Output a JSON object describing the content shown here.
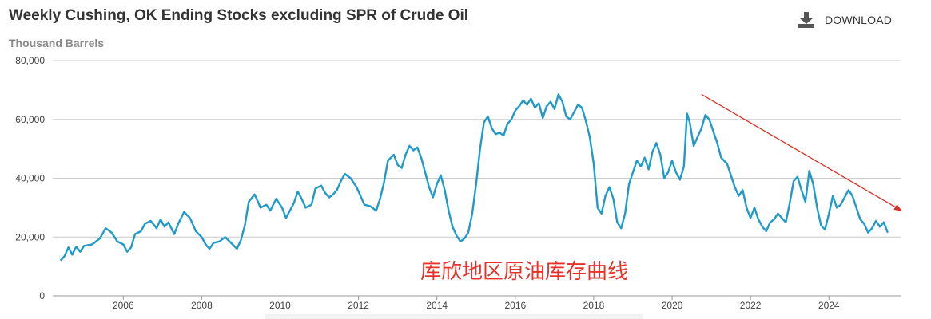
{
  "header": {
    "title": "Weekly Cushing, OK Ending Stocks excluding SPR of Crude Oil",
    "subtitle": "Thousand Barrels",
    "download_label": "DOWNLOAD",
    "download_icon": "download-icon"
  },
  "colors": {
    "line": "#1f9ac9",
    "grid": "#cccccc",
    "annotation": "#e8312a",
    "arrow": "#d93025"
  },
  "annotation_text": "库欣地区原油库存曲线",
  "chart_data": {
    "type": "line",
    "title": "Weekly Cushing, OK Ending Stocks excluding SPR of Crude Oil",
    "ylabel": "Thousand Barrels",
    "xlabel": "",
    "xlim": [
      2004.2,
      2025.85
    ],
    "ylim": [
      0,
      80000
    ],
    "yticks": [
      0,
      20000,
      40000,
      60000,
      80000
    ],
    "ytick_labels": [
      "0",
      "20,000",
      "40,000",
      "60,000",
      "80,000"
    ],
    "xticks": [
      2006,
      2008,
      2010,
      2012,
      2014,
      2016,
      2018,
      2020,
      2022,
      2024
    ],
    "xtick_labels": [
      "2006",
      "2008",
      "2010",
      "2012",
      "2014",
      "2016",
      "2018",
      "2020",
      "2022",
      "2024"
    ],
    "grid": true,
    "legend": "none",
    "series": [
      {
        "points": [
          [
            2004.4,
            12000
          ],
          [
            2004.5,
            13500
          ],
          [
            2004.6,
            16500
          ],
          [
            2004.7,
            14000
          ],
          [
            2004.8,
            16800
          ],
          [
            2004.9,
            15000
          ],
          [
            2005.0,
            17000
          ],
          [
            2005.2,
            17500
          ],
          [
            2005.4,
            19500
          ],
          [
            2005.55,
            23000
          ],
          [
            2005.7,
            21500
          ],
          [
            2005.85,
            18500
          ],
          [
            2006.0,
            17500
          ],
          [
            2006.1,
            15000
          ],
          [
            2006.2,
            16500
          ],
          [
            2006.3,
            21000
          ],
          [
            2006.45,
            22000
          ],
          [
            2006.55,
            24500
          ],
          [
            2006.7,
            25500
          ],
          [
            2006.85,
            23000
          ],
          [
            2006.95,
            26000
          ],
          [
            2007.05,
            23500
          ],
          [
            2007.15,
            25000
          ],
          [
            2007.3,
            21000
          ],
          [
            2007.4,
            24500
          ],
          [
            2007.55,
            28500
          ],
          [
            2007.7,
            26500
          ],
          [
            2007.85,
            22000
          ],
          [
            2008.0,
            20000
          ],
          [
            2008.1,
            17500
          ],
          [
            2008.2,
            16000
          ],
          [
            2008.3,
            18000
          ],
          [
            2008.45,
            18500
          ],
          [
            2008.6,
            20000
          ],
          [
            2008.75,
            18000
          ],
          [
            2008.9,
            16000
          ],
          [
            2009.0,
            19000
          ],
          [
            2009.1,
            24000
          ],
          [
            2009.2,
            32000
          ],
          [
            2009.35,
            34500
          ],
          [
            2009.5,
            30000
          ],
          [
            2009.65,
            31000
          ],
          [
            2009.75,
            29000
          ],
          [
            2009.9,
            33000
          ],
          [
            2010.05,
            30000
          ],
          [
            2010.15,
            26500
          ],
          [
            2010.25,
            29000
          ],
          [
            2010.35,
            31500
          ],
          [
            2010.45,
            35500
          ],
          [
            2010.55,
            33000
          ],
          [
            2010.65,
            30000
          ],
          [
            2010.8,
            31000
          ],
          [
            2010.9,
            36500
          ],
          [
            2011.05,
            37500
          ],
          [
            2011.15,
            35000
          ],
          [
            2011.25,
            33500
          ],
          [
            2011.35,
            34500
          ],
          [
            2011.45,
            36000
          ],
          [
            2011.55,
            39000
          ],
          [
            2011.65,
            41500
          ],
          [
            2011.8,
            40000
          ],
          [
            2011.95,
            37000
          ],
          [
            2012.05,
            34000
          ],
          [
            2012.15,
            31000
          ],
          [
            2012.3,
            30500
          ],
          [
            2012.45,
            29000
          ],
          [
            2012.55,
            33000
          ],
          [
            2012.65,
            38500
          ],
          [
            2012.75,
            46000
          ],
          [
            2012.9,
            48000
          ],
          [
            2013.0,
            44500
          ],
          [
            2013.1,
            43500
          ],
          [
            2013.2,
            48000
          ],
          [
            2013.3,
            51000
          ],
          [
            2013.4,
            49500
          ],
          [
            2013.5,
            50500
          ],
          [
            2013.6,
            47000
          ],
          [
            2013.7,
            42000
          ],
          [
            2013.8,
            37000
          ],
          [
            2013.9,
            33500
          ],
          [
            2014.0,
            38000
          ],
          [
            2014.1,
            41000
          ],
          [
            2014.2,
            36000
          ],
          [
            2014.3,
            29000
          ],
          [
            2014.4,
            23500
          ],
          [
            2014.5,
            20500
          ],
          [
            2014.6,
            18500
          ],
          [
            2014.7,
            19500
          ],
          [
            2014.8,
            21500
          ],
          [
            2014.9,
            28000
          ],
          [
            2015.0,
            38000
          ],
          [
            2015.1,
            50000
          ],
          [
            2015.2,
            59000
          ],
          [
            2015.3,
            61000
          ],
          [
            2015.4,
            57000
          ],
          [
            2015.5,
            55000
          ],
          [
            2015.6,
            55500
          ],
          [
            2015.7,
            54500
          ],
          [
            2015.8,
            58500
          ],
          [
            2015.9,
            60000
          ],
          [
            2016.0,
            63000
          ],
          [
            2016.1,
            64500
          ],
          [
            2016.2,
            66500
          ],
          [
            2016.3,
            65000
          ],
          [
            2016.4,
            67000
          ],
          [
            2016.5,
            64000
          ],
          [
            2016.6,
            65500
          ],
          [
            2016.7,
            60500
          ],
          [
            2016.8,
            64500
          ],
          [
            2016.9,
            66000
          ],
          [
            2017.0,
            63500
          ],
          [
            2017.1,
            68500
          ],
          [
            2017.2,
            66000
          ],
          [
            2017.3,
            61000
          ],
          [
            2017.4,
            60000
          ],
          [
            2017.5,
            62500
          ],
          [
            2017.6,
            65000
          ],
          [
            2017.7,
            64000
          ],
          [
            2017.8,
            59500
          ],
          [
            2017.9,
            54000
          ],
          [
            2018.0,
            45000
          ],
          [
            2018.1,
            30000
          ],
          [
            2018.2,
            28000
          ],
          [
            2018.3,
            34000
          ],
          [
            2018.4,
            37000
          ],
          [
            2018.5,
            33000
          ],
          [
            2018.6,
            25000
          ],
          [
            2018.7,
            23000
          ],
          [
            2018.8,
            28000
          ],
          [
            2018.9,
            38000
          ],
          [
            2019.0,
            42000
          ],
          [
            2019.1,
            46000
          ],
          [
            2019.2,
            44000
          ],
          [
            2019.3,
            47000
          ],
          [
            2019.4,
            43000
          ],
          [
            2019.5,
            49000
          ],
          [
            2019.6,
            52000
          ],
          [
            2019.7,
            48000
          ],
          [
            2019.8,
            40000
          ],
          [
            2019.9,
            42000
          ],
          [
            2020.0,
            46000
          ],
          [
            2020.1,
            42000
          ],
          [
            2020.2,
            39500
          ],
          [
            2020.3,
            44000
          ],
          [
            2020.38,
            62000
          ],
          [
            2020.45,
            59000
          ],
          [
            2020.55,
            51000
          ],
          [
            2020.65,
            54000
          ],
          [
            2020.75,
            57000
          ],
          [
            2020.85,
            61500
          ],
          [
            2020.95,
            60000
          ],
          [
            2021.05,
            56000
          ],
          [
            2021.15,
            52000
          ],
          [
            2021.25,
            47000
          ],
          [
            2021.4,
            45000
          ],
          [
            2021.5,
            41000
          ],
          [
            2021.6,
            37000
          ],
          [
            2021.7,
            34000
          ],
          [
            2021.8,
            36000
          ],
          [
            2021.9,
            30000
          ],
          [
            2022.0,
            26500
          ],
          [
            2022.1,
            30000
          ],
          [
            2022.2,
            26000
          ],
          [
            2022.3,
            23500
          ],
          [
            2022.4,
            22000
          ],
          [
            2022.5,
            25000
          ],
          [
            2022.6,
            26000
          ],
          [
            2022.7,
            28000
          ],
          [
            2022.8,
            26500
          ],
          [
            2022.9,
            25000
          ],
          [
            2023.0,
            31500
          ],
          [
            2023.1,
            39000
          ],
          [
            2023.2,
            40500
          ],
          [
            2023.3,
            36000
          ],
          [
            2023.4,
            32000
          ],
          [
            2023.5,
            42500
          ],
          [
            2023.6,
            38000
          ],
          [
            2023.7,
            30000
          ],
          [
            2023.8,
            24000
          ],
          [
            2023.9,
            22500
          ],
          [
            2024.0,
            28000
          ],
          [
            2024.1,
            34000
          ],
          [
            2024.2,
            30000
          ],
          [
            2024.3,
            31000
          ],
          [
            2024.4,
            33500
          ],
          [
            2024.5,
            36000
          ],
          [
            2024.6,
            34000
          ],
          [
            2024.7,
            30000
          ],
          [
            2024.8,
            26000
          ],
          [
            2024.9,
            24500
          ],
          [
            2025.0,
            21500
          ],
          [
            2025.1,
            23000
          ],
          [
            2025.2,
            25500
          ],
          [
            2025.3,
            23500
          ],
          [
            2025.4,
            25000
          ],
          [
            2025.5,
            21500
          ]
        ]
      }
    ],
    "annotations": [
      {
        "type": "arrow",
        "from": [
          2020.75,
          68500
        ],
        "to": [
          2025.85,
          29000
        ]
      }
    ]
  }
}
